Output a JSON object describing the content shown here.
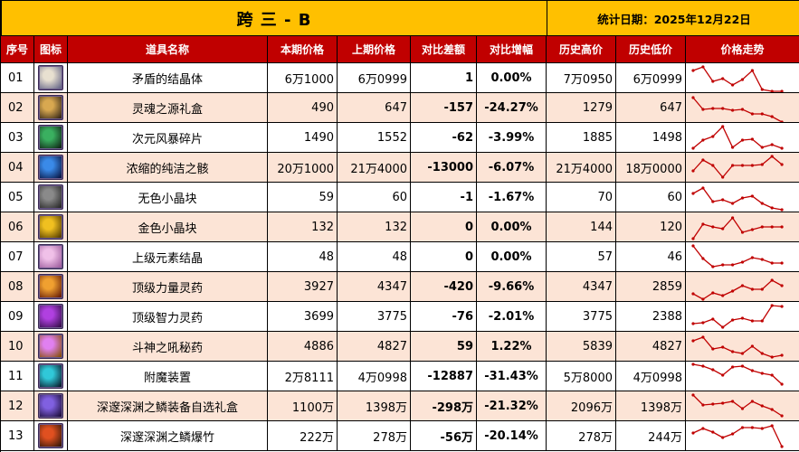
{
  "title": {
    "main": "跨 三 - B",
    "date_label": "统计日期：2025年12月22日"
  },
  "colors": {
    "title_bg": "#FFC000",
    "header_bg": "#C00000",
    "row_alt_bg": "#FCE4D6",
    "negative": "#1FA64A",
    "positive": "#E00000",
    "sparkline": "#C00000"
  },
  "columns": [
    "序号",
    "图标",
    "道具名称",
    "本期价格",
    "上期价格",
    "对比差额",
    "对比增幅",
    "历史高价",
    "历史低价",
    "价格走势"
  ],
  "rows": [
    {
      "idx": "01",
      "icon": "crystal-icon",
      "icon_colors": [
        "#e8e0d0",
        "#6a6a8a"
      ],
      "name": "矛盾的结晶体",
      "cur": "6万1000",
      "prev": "6万0999",
      "diff": "1",
      "pct": "0.00%",
      "sign": "pos",
      "hi": "7万0950",
      "lo": "6万0999",
      "trend": [
        8,
        4,
        20,
        17,
        24,
        18,
        8,
        29,
        31,
        31
      ]
    },
    {
      "idx": "02",
      "icon": "gift-box-icon",
      "icon_colors": [
        "#d8a850",
        "#3a2a18"
      ],
      "name": "灵魂之源礼盒",
      "cur": "490",
      "prev": "647",
      "diff": "-157",
      "pct": "-24.27%",
      "sign": "neg",
      "hi": "1279",
      "lo": "647",
      "trend": [
        5,
        18,
        17,
        17,
        19,
        18,
        23,
        23,
        26,
        32
      ]
    },
    {
      "idx": "03",
      "icon": "storm-shard-icon",
      "icon_colors": [
        "#3ab060",
        "#102a18"
      ],
      "name": "次元风暴碎片",
      "cur": "1490",
      "prev": "1552",
      "diff": "-62",
      "pct": "-3.99%",
      "sign": "neg",
      "hi": "1885",
      "lo": "1498",
      "trend": [
        28,
        19,
        15,
        4,
        27,
        19,
        18,
        27,
        24,
        28
      ]
    },
    {
      "idx": "04",
      "icon": "purity-orb-icon",
      "icon_colors": [
        "#3a8ae8",
        "#0a1a4a"
      ],
      "name": "浓缩的纯洁之骸",
      "cur": "20万1000",
      "prev": "21万4000",
      "diff": "-13000",
      "pct": "-6.07%",
      "sign": "neg",
      "hi": "21万4000",
      "lo": "18万0000",
      "trend": [
        20,
        8,
        14,
        27,
        14,
        14,
        14,
        13,
        4,
        13
      ]
    },
    {
      "idx": "05",
      "icon": "colorless-cube-icon",
      "icon_colors": [
        "#8a8a8a",
        "#2a2a2a"
      ],
      "name": "无色小晶块",
      "cur": "59",
      "prev": "60",
      "diff": "-1",
      "pct": "-1.67%",
      "sign": "neg",
      "hi": "70",
      "lo": "60",
      "trend": [
        12,
        6,
        21,
        19,
        23,
        17,
        15,
        23,
        28,
        30
      ]
    },
    {
      "idx": "06",
      "icon": "gold-cube-icon",
      "icon_colors": [
        "#f0c020",
        "#5a4000"
      ],
      "name": "金色小晶块",
      "cur": "132",
      "prev": "132",
      "diff": "0",
      "pct": "0.00%",
      "sign": "pos",
      "hi": "144",
      "lo": "120",
      "trend": [
        29,
        13,
        16,
        18,
        6,
        22,
        19,
        16,
        16,
        16
      ]
    },
    {
      "idx": "07",
      "icon": "element-crystal-icon",
      "icon_colors": [
        "#f0c0e8",
        "#a060a0"
      ],
      "name": "上级元素结晶",
      "cur": "48",
      "prev": "48",
      "diff": "0",
      "pct": "0.00%",
      "sign": "pos",
      "hi": "57",
      "lo": "46",
      "trend": [
        4,
        18,
        27,
        25,
        25,
        22,
        17,
        19,
        23,
        23
      ]
    },
    {
      "idx": "08",
      "icon": "strength-elixir-icon",
      "icon_colors": [
        "#f0a030",
        "#6a2008"
      ],
      "name": "顶级力量灵药",
      "cur": "3927",
      "prev": "4347",
      "diff": "-420",
      "pct": "-9.66%",
      "sign": "neg",
      "hi": "4347",
      "lo": "2859",
      "trend": [
        24,
        30,
        23,
        26,
        21,
        15,
        19,
        19,
        9,
        15
      ]
    },
    {
      "idx": "09",
      "icon": "intelligence-elixir-icon",
      "icon_colors": [
        "#b040e0",
        "#3a1050"
      ],
      "name": "顶级智力灵药",
      "cur": "3699",
      "prev": "3775",
      "diff": "-76",
      "pct": "-2.01%",
      "sign": "neg",
      "hi": "3775",
      "lo": "2388",
      "trend": [
        24,
        23,
        19,
        28,
        20,
        18,
        21,
        21,
        4,
        5
      ]
    },
    {
      "idx": "10",
      "icon": "war-god-potion-icon",
      "icon_colors": [
        "#e080f0",
        "#8a5010"
      ],
      "name": "斗神之吼秘药",
      "cur": "4886",
      "prev": "4827",
      "diff": "59",
      "pct": "1.22%",
      "sign": "pos",
      "hi": "5839",
      "lo": "4827",
      "trend": [
        10,
        6,
        19,
        17,
        22,
        24,
        16,
        24,
        28,
        26
      ]
    },
    {
      "idx": "11",
      "icon": "enchant-device-icon",
      "icon_colors": [
        "#30c8d8",
        "#0a2030"
      ],
      "name": "附魔装置",
      "cur": "2万8111",
      "prev": "4万0998",
      "diff": "-12887",
      "pct": "-31.43%",
      "sign": "neg",
      "hi": "5万8000",
      "lo": "4万0998",
      "trend": [
        3,
        5,
        9,
        15,
        6,
        5,
        10,
        13,
        15,
        25
      ]
    },
    {
      "idx": "12",
      "icon": "abyss-gift-box-icon",
      "icon_colors": [
        "#8060e0",
        "#201040"
      ],
      "name": "深邃深渊之鳞装备自选礼盒",
      "cur": "1100万",
      "prev": "1398万",
      "diff": "-298万",
      "pct": "-21.32%",
      "sign": "neg",
      "hi": "2096万",
      "lo": "1398万",
      "trend": [
        4,
        15,
        14,
        13,
        11,
        19,
        11,
        16,
        20,
        27
      ]
    },
    {
      "idx": "13",
      "icon": "abyss-firecracker-icon",
      "icon_colors": [
        "#e05020",
        "#3a1a08"
      ],
      "name": "深邃深渊之鳞爆竹",
      "cur": "222万",
      "prev": "278万",
      "diff": "-56万",
      "pct": "-20.14%",
      "sign": "neg",
      "hi": "278万",
      "lo": "244万",
      "trend": [
        13,
        8,
        12,
        18,
        14,
        7,
        7,
        8,
        5,
        28
      ]
    }
  ]
}
